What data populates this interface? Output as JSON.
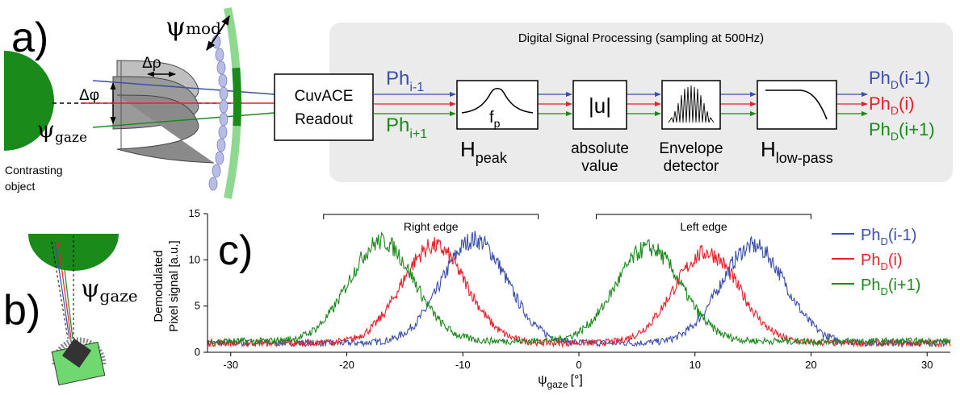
{
  "panel_a": {
    "label": "a)",
    "psi_mod": "ψ",
    "psi_mod_sub": "mod",
    "delta_rho": "Δρ",
    "delta_phi": "Δφ",
    "psi_gaze": "ψ",
    "psi_gaze_sub": "gaze",
    "object_label_1": "Contrasting",
    "object_label_2": "object",
    "dsp_title": "Digital Signal Processing (sampling at 500Hz)",
    "in_top": "Ph",
    "in_top_sub": "i-1",
    "in_bot": "Ph",
    "in_bot_sub": "i+1",
    "readout_1": "CuvACE",
    "readout_2": "Readout",
    "fp": "f",
    "fp_sub": "p",
    "hpeak": "H",
    "hpeak_sub": "peak",
    "abs_box": "|u|",
    "abs_1": "absolute",
    "abs_2": "value",
    "env_1": "Envelope",
    "env_2": "detector",
    "hlow": "H",
    "hlow_sub": "low-pass",
    "out_top": "Ph",
    "out_top_sub": "D",
    "out_top_suf": "(i-1)",
    "out_mid": "Ph",
    "out_mid_sub": "D",
    "out_mid_suf": "(i)",
    "out_bot": "Ph",
    "out_bot_sub": "D",
    "out_bot_suf": "(i+1)"
  },
  "panel_b": {
    "label": "b)",
    "psi": "ψ",
    "psi_sub": "gaze"
  },
  "panel_c": {
    "label": "c)",
    "ylabel_1": "Demodulated",
    "ylabel_2": "Pixel signal [a.u.]",
    "xlabel": "ψ",
    "xlabel_sub": "gaze",
    "xlabel_unit": "[°]",
    "right_edge": "Right edge",
    "left_edge": "Left edge",
    "legend": [
      {
        "pre": "Ph",
        "sub": "D",
        "suf": "(i-1)",
        "color": "#3a4fa8"
      },
      {
        "pre": "Ph",
        "sub": "D",
        "suf": "(i)",
        "color": "#e8202a"
      },
      {
        "pre": "Ph",
        "sub": "D",
        "suf": "(i+1)",
        "color": "#1a8a1a"
      }
    ],
    "xticks": [
      "-30",
      "-20",
      "-10",
      "0",
      "10",
      "20",
      "30"
    ],
    "yticks": [
      "0",
      "5",
      "10",
      "15"
    ]
  },
  "chart_data": {
    "type": "line",
    "xlim": [
      -32,
      32
    ],
    "ylim": [
      0,
      15
    ],
    "xlabel": "ψgaze [°]",
    "ylabel": "Demodulated Pixel signal [a.u.]",
    "grid": false,
    "legend_position": "top-right",
    "series": [
      {
        "name": "PhD(i-1)",
        "color": "#3a4fa8",
        "baseline": 1.0,
        "peaks": [
          {
            "x": -9,
            "y": 12.2,
            "w": 2.8
          },
          {
            "x": 15,
            "y": 11.5,
            "w": 2.8
          }
        ]
      },
      {
        "name": "PhD(i)",
        "color": "#e8202a",
        "baseline": 1.0,
        "peaks": [
          {
            "x": -12.5,
            "y": 11.5,
            "w": 2.8
          },
          {
            "x": 11,
            "y": 10.8,
            "w": 2.8
          }
        ]
      },
      {
        "name": "PhD(i+1)",
        "color": "#1a8a1a",
        "baseline": 1.2,
        "peaks": [
          {
            "x": -17,
            "y": 12.0,
            "w": 2.8
          },
          {
            "x": 6,
            "y": 11.3,
            "w": 2.8
          }
        ]
      }
    ],
    "annotations": [
      {
        "text": "Right edge",
        "x_range": [
          -22,
          -3.5
        ]
      },
      {
        "text": "Left edge",
        "x_range": [
          1.5,
          20
        ]
      }
    ]
  }
}
